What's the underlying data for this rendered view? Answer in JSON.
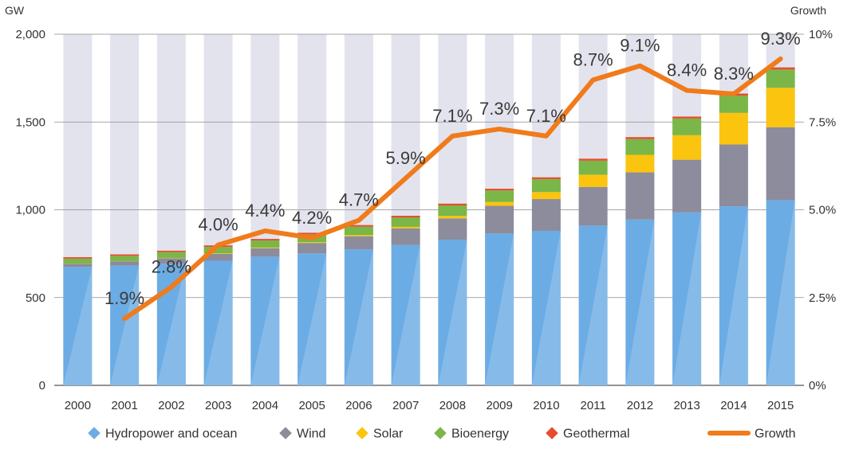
{
  "chart_data": {
    "type": "bar",
    "stacked": true,
    "left_axis_unit": "GW",
    "right_axis_unit": "Growth",
    "categories": [
      "2000",
      "2001",
      "2002",
      "2003",
      "2004",
      "2005",
      "2006",
      "2007",
      "2008",
      "2009",
      "2010",
      "2011",
      "2012",
      "2013",
      "2014",
      "2015"
    ],
    "ylim": [
      0,
      2000
    ],
    "left_ticks": [
      "0",
      "500",
      "1,000",
      "1,500",
      "2,000"
    ],
    "left_tick_values": [
      0,
      500,
      1000,
      1500,
      2000
    ],
    "y2lim": [
      0,
      10
    ],
    "right_ticks": [
      "0%",
      "2.5%",
      "5.0%",
      "7.5%",
      "10%"
    ],
    "right_tick_values": [
      0,
      2.5,
      5,
      7.5,
      10
    ],
    "grid": true,
    "legend_position": "bottom",
    "series": [
      {
        "name": "Hydropower and ocean",
        "color": "#6cace4",
        "values": [
          675,
          683,
          693,
          710,
          733,
          752,
          775,
          800,
          830,
          865,
          880,
          910,
          945,
          985,
          1020,
          1055
        ]
      },
      {
        "name": "Wind",
        "color": "#8c8c9c",
        "values": [
          18,
          24,
          31,
          39,
          48,
          59,
          74,
          94,
          121,
          158,
          181,
          220,
          268,
          300,
          352,
          415
        ]
      },
      {
        "name": "Solar",
        "color": "#fbc40f",
        "values": [
          1,
          1,
          2,
          3,
          4,
          5,
          7,
          9,
          14,
          22,
          40,
          70,
          100,
          140,
          180,
          225
        ]
      },
      {
        "name": "Bioenergy",
        "color": "#7ab648",
        "values": [
          28,
          30,
          33,
          36,
          40,
          44,
          48,
          53,
          60,
          65,
          74,
          80,
          90,
          95,
          98,
          104
        ]
      },
      {
        "name": "Geothermal",
        "color": "#e74c2e",
        "values": [
          8,
          8,
          8,
          9,
          9,
          9,
          9,
          10,
          10,
          10,
          10,
          11,
          11,
          11,
          12,
          12
        ]
      }
    ],
    "growth": {
      "name": "Growth",
      "color": "#f07b1a",
      "x": [
        "2001",
        "2002",
        "2003",
        "2004",
        "2005",
        "2006",
        "2007",
        "2008",
        "2009",
        "2010",
        "2011",
        "2012",
        "2013",
        "2014",
        "2015"
      ],
      "values": [
        1.9,
        2.8,
        4.0,
        4.4,
        4.2,
        4.7,
        5.9,
        7.1,
        7.3,
        7.1,
        8.7,
        9.1,
        8.4,
        8.3,
        9.3
      ],
      "labels": [
        "1.9%",
        "2.8%",
        "4.0%",
        "4.4%",
        "4.2%",
        "4.7%",
        "5.9%",
        "7.1%",
        "7.3%",
        "7.1%",
        "8.7%",
        "9.1%",
        "8.4%",
        "8.3%",
        "9.3%"
      ]
    }
  }
}
